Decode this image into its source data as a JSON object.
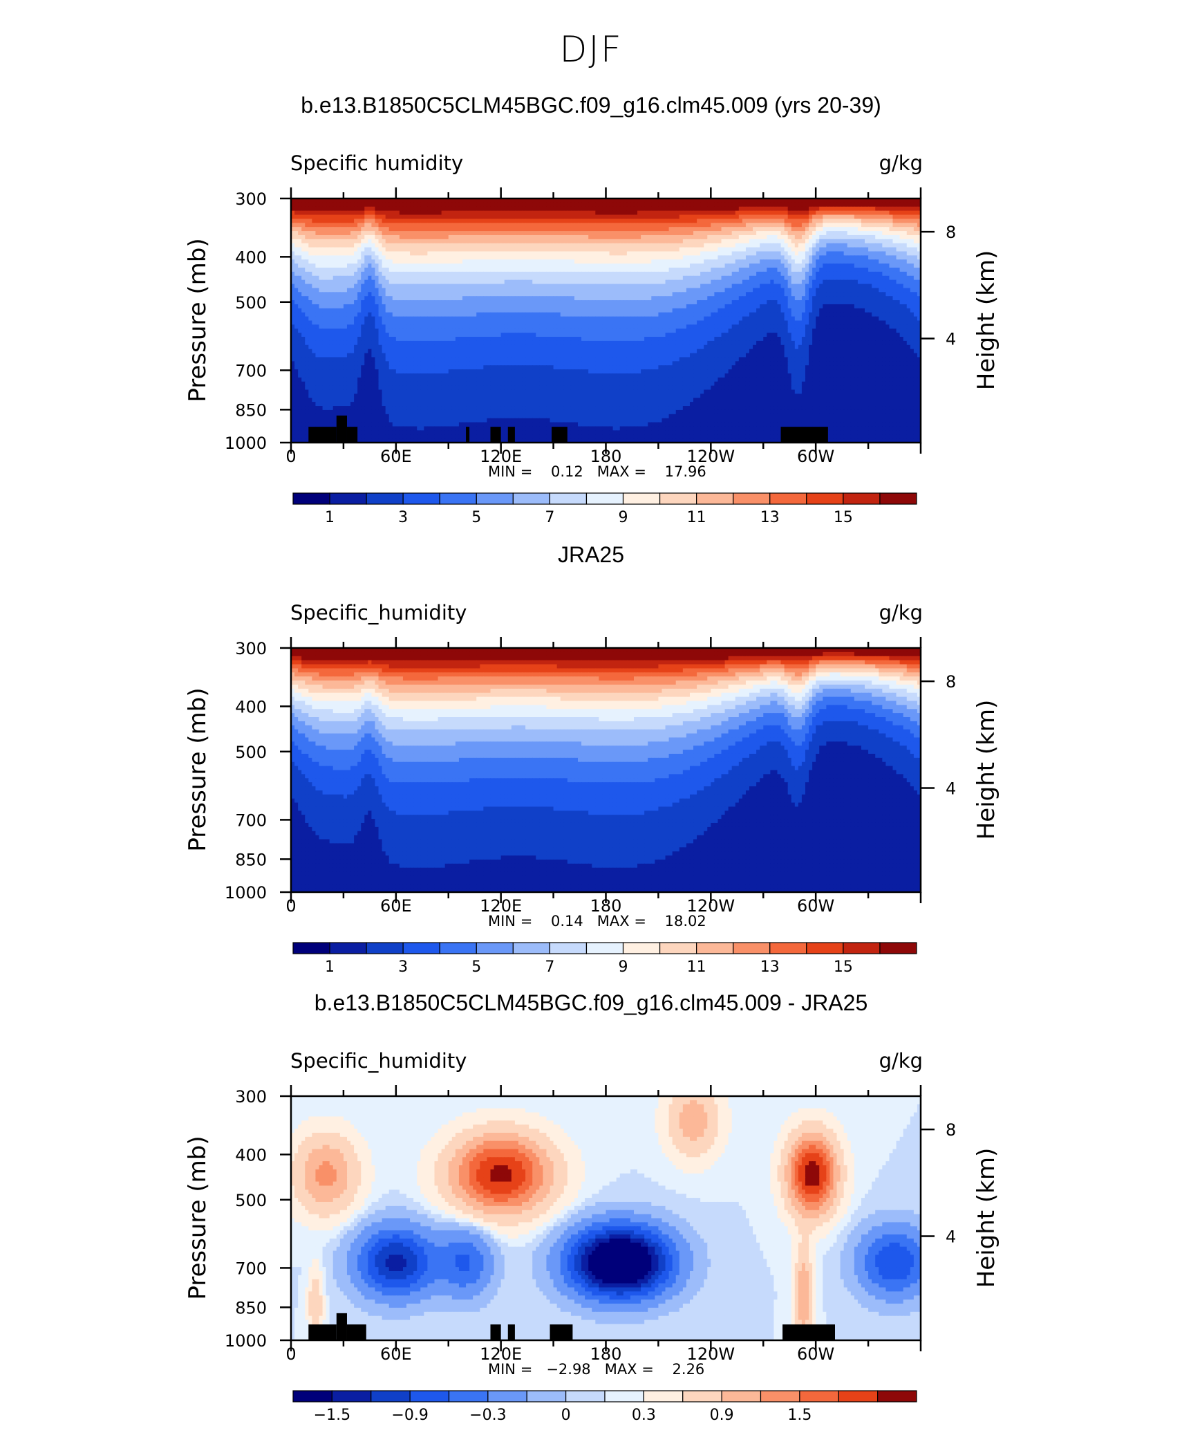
{
  "page": {
    "title": "DJF"
  },
  "chart_data": [
    {
      "type": "contour",
      "title": "b.e13.B1850C5CLM45BGC.f09_g16.clm45.009 (yrs 20-39)",
      "variable_label": "Specific humidity",
      "units": "g/kg",
      "ylabel": "Pressure (mb)",
      "ylabel_right": "Height (km)",
      "pressure_ticks": [
        "300",
        "400",
        "500",
        "700",
        "850",
        "1000"
      ],
      "pressure_values": [
        300,
        400,
        500,
        700,
        850,
        1000
      ],
      "height_ticks": [
        "8",
        "4"
      ],
      "height_values_km": [
        8,
        4
      ],
      "x_ticks": [
        "0",
        "60E",
        "120E",
        "180",
        "120W",
        "60W"
      ],
      "x_values_deg": [
        0,
        60,
        120,
        180,
        240,
        300
      ],
      "xlim_deg": [
        0,
        360
      ],
      "stats_text": "MIN =    0.12   MAX =    17.96",
      "min": 0.12,
      "max": 17.96,
      "colorbar_labels": [
        "1",
        "3",
        "5",
        "7",
        "9",
        "11",
        "13",
        "15"
      ],
      "colorbar_levels": [
        0,
        1,
        2,
        3,
        4,
        5,
        6,
        7,
        8,
        9,
        10,
        11,
        12,
        13,
        14,
        15,
        16
      ],
      "colors": [
        "#00007a",
        "#0a1ea2",
        "#1040c8",
        "#1e58ec",
        "#3a74f4",
        "#6a98f8",
        "#9cbcfa",
        "#c6dafc",
        "#e6f2fe",
        "#fff0e2",
        "#fdd6be",
        "#fcb898",
        "#f99068",
        "#f4683c",
        "#e64218",
        "#c22410",
        "#8e0808"
      ],
      "field_model": "humidity",
      "shift_rh": 0,
      "depth_scale": 1.0,
      "topography_deg": [
        [
          10,
          26,
          1000,
          925
        ],
        [
          26,
          32,
          1000,
          875
        ],
        [
          32,
          38,
          1000,
          925
        ],
        [
          100,
          102,
          1000,
          925
        ],
        [
          114,
          120,
          1000,
          925
        ],
        [
          124,
          128,
          1000,
          925
        ],
        [
          149,
          158,
          1000,
          925
        ],
        [
          280,
          307,
          1000,
          925
        ]
      ]
    },
    {
      "type": "contour",
      "title": "JRA25",
      "variable_label": "Specific_humidity",
      "units": "g/kg",
      "ylabel": "Pressure (mb)",
      "ylabel_right": "Height (km)",
      "pressure_ticks": [
        "300",
        "400",
        "500",
        "700",
        "850",
        "1000"
      ],
      "pressure_values": [
        300,
        400,
        500,
        700,
        850,
        1000
      ],
      "height_ticks": [
        "8",
        "4"
      ],
      "height_values_km": [
        8,
        4
      ],
      "x_ticks": [
        "0",
        "60E",
        "120E",
        "180",
        "120W",
        "60W"
      ],
      "x_values_deg": [
        0,
        60,
        120,
        180,
        240,
        300
      ],
      "xlim_deg": [
        0,
        360
      ],
      "stats_text": "MIN =    0.14   MAX =    18.02",
      "min": 0.14,
      "max": 18.02,
      "colorbar_labels": [
        "1",
        "3",
        "5",
        "7",
        "9",
        "11",
        "13",
        "15"
      ],
      "colorbar_levels": [
        0,
        1,
        2,
        3,
        4,
        5,
        6,
        7,
        8,
        9,
        10,
        11,
        12,
        13,
        14,
        15,
        16
      ],
      "colors": [
        "#00007a",
        "#0a1ea2",
        "#1040c8",
        "#1e58ec",
        "#3a74f4",
        "#6a98f8",
        "#9cbcfa",
        "#c6dafc",
        "#e6f2fe",
        "#fff0e2",
        "#fdd6be",
        "#fcb898",
        "#f99068",
        "#f4683c",
        "#e64218",
        "#c22410",
        "#8e0808"
      ],
      "field_model": "humidity",
      "shift_rh": -0.02,
      "depth_scale": 0.65,
      "topography_deg": []
    },
    {
      "type": "contour",
      "title": "b.e13.B1850C5CLM45BGC.f09_g16.clm45.009 - JRA25",
      "variable_label": "Specific_humidity",
      "units": "g/kg",
      "ylabel": "Pressure (mb)",
      "ylabel_right": "Height (km)",
      "pressure_ticks": [
        "300",
        "400",
        "500",
        "700",
        "850",
        "1000"
      ],
      "pressure_values": [
        300,
        400,
        500,
        700,
        850,
        1000
      ],
      "height_ticks": [
        "8",
        "4"
      ],
      "height_values_km": [
        8,
        4
      ],
      "x_ticks": [
        "0",
        "60E",
        "120E",
        "180",
        "120W",
        "60W"
      ],
      "x_values_deg": [
        0,
        60,
        120,
        180,
        240,
        300
      ],
      "xlim_deg": [
        0,
        360
      ],
      "stats_text": "MIN =   −2.98   MAX =    2.26",
      "min": -2.98,
      "max": 2.26,
      "colorbar_labels": [
        "−1.5",
        "−0.9",
        "−0.3",
        "0",
        "0.3",
        "0.9",
        "1.5"
      ],
      "colorbar_levels": [
        -1.8,
        -1.5,
        -1.2,
        -0.9,
        -0.6,
        -0.3,
        -0.1,
        0,
        0.1,
        0.3,
        0.6,
        0.9,
        1.2,
        1.5,
        1.8
      ],
      "colors": [
        "#00007a",
        "#0a1ea2",
        "#1040c8",
        "#1e58ec",
        "#3a74f4",
        "#6a98f8",
        "#9cbcfa",
        "#c6dafc",
        "#e6f2fe",
        "#fff0e2",
        "#fdd6be",
        "#fcb898",
        "#f99068",
        "#f4683c",
        "#e64218",
        "#8e0808"
      ],
      "field_model": "difference",
      "topography_deg": [
        [
          10,
          26,
          1000,
          925
        ],
        [
          26,
          32,
          1000,
          875
        ],
        [
          32,
          43,
          1000,
          925
        ],
        [
          114,
          120,
          1000,
          925
        ],
        [
          124,
          128,
          1000,
          925
        ],
        [
          148,
          161,
          1000,
          925
        ],
        [
          281,
          311,
          1000,
          925
        ]
      ]
    }
  ]
}
